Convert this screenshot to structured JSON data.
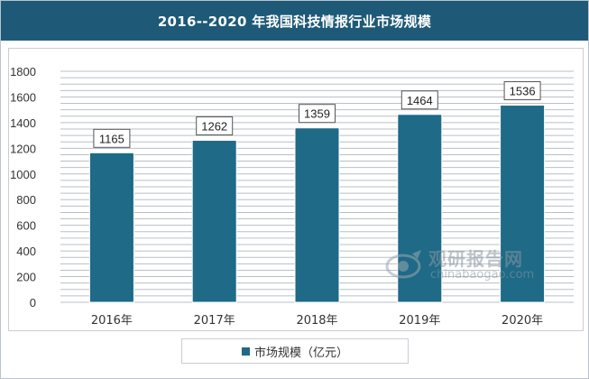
{
  "header": {
    "title": "2016--2020 年我国科技情报行业市场规模"
  },
  "colors": {
    "title_bg": "#1e5a78",
    "bar": "#1e6a87",
    "gridline": "#b8c0c6"
  },
  "legend": {
    "label": "市场规模（亿元）"
  },
  "watermark": {
    "cn": "观研报告网",
    "en": "chinabaogao.com"
  },
  "chart_data": {
    "type": "bar",
    "title": "2016--2020 年我国科技情报行业市场规模",
    "categories": [
      "2016年",
      "2017年",
      "2018年",
      "2019年",
      "2020年"
    ],
    "series": [
      {
        "name": "市场规模（亿元）",
        "values": [
          1165,
          1262,
          1359,
          1464,
          1536
        ]
      }
    ],
    "ylim": [
      0,
      1800
    ],
    "yticks": [
      0,
      200,
      400,
      600,
      800,
      1000,
      1200,
      1400,
      1600,
      1800
    ],
    "grid": true,
    "legend_position": "bottom",
    "data_labels": true
  }
}
